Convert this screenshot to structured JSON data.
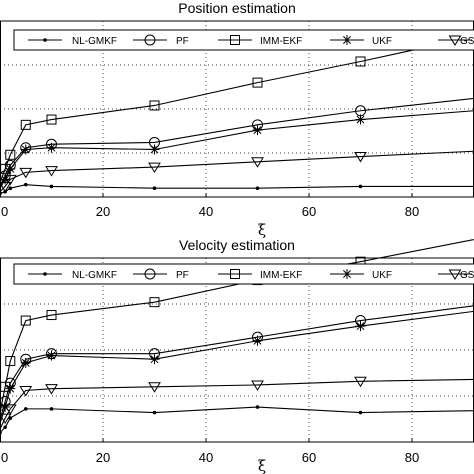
{
  "chart_data": [
    {
      "type": "line",
      "title": "Position estimation",
      "xlabel": "ξ",
      "ylabel": "",
      "xlim": [
        0,
        92
      ],
      "ylim": [
        0,
        1
      ],
      "grid": true,
      "legend_position": "top",
      "x_ticks": [
        "0",
        "20",
        "40",
        "60",
        "80"
      ],
      "x": [
        0,
        1,
        2,
        5,
        10,
        30,
        50,
        70,
        92
      ],
      "series": [
        {
          "name": "NL-GMKF",
          "marker": "dot",
          "values": [
            0.02,
            0.03,
            0.05,
            0.07,
            0.06,
            0.05,
            0.05,
            0.06,
            0.06
          ]
        },
        {
          "name": "PF",
          "marker": "circle",
          "values": [
            0.06,
            0.12,
            0.18,
            0.28,
            0.3,
            0.31,
            0.41,
            0.49,
            0.56
          ]
        },
        {
          "name": "IMM-EKF",
          "marker": "square",
          "values": [
            0.08,
            0.16,
            0.24,
            0.41,
            0.44,
            0.52,
            0.65,
            0.77,
            0.91
          ]
        },
        {
          "name": "UKF",
          "marker": "asterisk",
          "values": [
            0.05,
            0.1,
            0.16,
            0.27,
            0.28,
            0.27,
            0.38,
            0.44,
            0.49
          ]
        },
        {
          "name": "GSF",
          "marker": "triangle-down",
          "values": [
            0.03,
            0.06,
            0.1,
            0.14,
            0.15,
            0.17,
            0.2,
            0.23,
            0.26
          ]
        }
      ]
    },
    {
      "type": "line",
      "title": "Velocity estimation",
      "xlabel": "ξ",
      "ylabel": "",
      "xlim": [
        0,
        92
      ],
      "ylim": [
        0,
        1
      ],
      "grid": true,
      "legend_position": "top",
      "x_ticks": [
        "0",
        "20",
        "40",
        "60",
        "80"
      ],
      "x": [
        0,
        1,
        2,
        5,
        10,
        30,
        50,
        70,
        92
      ],
      "series": [
        {
          "name": "NL-GMKF",
          "marker": "dot",
          "values": [
            0.05,
            0.08,
            0.13,
            0.18,
            0.18,
            0.16,
            0.19,
            0.16,
            0.17
          ]
        },
        {
          "name": "PF",
          "marker": "circle",
          "values": [
            0.12,
            0.22,
            0.32,
            0.45,
            0.48,
            0.48,
            0.57,
            0.66,
            0.74
          ]
        },
        {
          "name": "IMM-EKF",
          "marker": "square",
          "values": [
            0.16,
            0.3,
            0.44,
            0.66,
            0.69,
            0.76,
            0.88,
            0.98,
            1.1
          ]
        },
        {
          "name": "UKF",
          "marker": "asterisk",
          "values": [
            0.1,
            0.19,
            0.29,
            0.43,
            0.47,
            0.45,
            0.55,
            0.63,
            0.71
          ]
        },
        {
          "name": "GSF",
          "marker": "triangle-down",
          "values": [
            0.07,
            0.13,
            0.18,
            0.28,
            0.29,
            0.3,
            0.31,
            0.33,
            0.34
          ]
        }
      ]
    }
  ]
}
